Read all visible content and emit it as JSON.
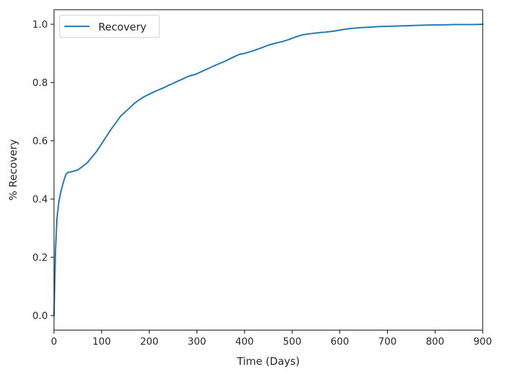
{
  "chart_data": {
    "type": "line",
    "title": "",
    "xlabel": "Time (Days)",
    "ylabel": "% Recovery",
    "xlim": [
      0,
      900
    ],
    "ylim": [
      -0.05,
      1.05
    ],
    "xticks": [
      0,
      100,
      200,
      300,
      400,
      500,
      600,
      700,
      800,
      900
    ],
    "yticks": [
      0.0,
      0.2,
      0.4,
      0.6,
      0.8,
      1.0
    ],
    "xtick_labels": [
      "0",
      "100",
      "200",
      "300",
      "400",
      "500",
      "600",
      "700",
      "800",
      "900"
    ],
    "ytick_labels": [
      "0.0",
      "0.2",
      "0.4",
      "0.6",
      "0.8",
      "1.0"
    ],
    "grid": false,
    "legend": {
      "position": "upper-left",
      "entries": [
        "Recovery"
      ]
    },
    "series": [
      {
        "name": "Recovery",
        "color": "#1f77b4",
        "x": [
          0,
          3,
          6,
          10,
          15,
          20,
          25,
          30,
          40,
          50,
          60,
          70,
          80,
          90,
          100,
          110,
          120,
          130,
          140,
          150,
          160,
          170,
          180,
          190,
          200,
          210,
          220,
          230,
          240,
          250,
          260,
          270,
          280,
          290,
          300,
          310,
          320,
          330,
          340,
          350,
          360,
          370,
          380,
          390,
          400,
          410,
          420,
          430,
          440,
          450,
          460,
          470,
          480,
          490,
          500,
          510,
          520,
          530,
          540,
          550,
          560,
          570,
          580,
          590,
          600,
          620,
          640,
          660,
          680,
          700,
          720,
          740,
          760,
          780,
          800,
          820,
          840,
          860,
          880,
          900
        ],
        "y": [
          0.0,
          0.22,
          0.33,
          0.39,
          0.43,
          0.46,
          0.485,
          0.492,
          0.495,
          0.5,
          0.512,
          0.525,
          0.545,
          0.565,
          0.59,
          0.615,
          0.64,
          0.662,
          0.685,
          0.7,
          0.715,
          0.73,
          0.742,
          0.752,
          0.76,
          0.768,
          0.775,
          0.782,
          0.79,
          0.797,
          0.805,
          0.812,
          0.82,
          0.825,
          0.83,
          0.838,
          0.845,
          0.853,
          0.86,
          0.867,
          0.874,
          0.882,
          0.89,
          0.897,
          0.9,
          0.905,
          0.91,
          0.916,
          0.922,
          0.928,
          0.933,
          0.937,
          0.941,
          0.946,
          0.952,
          0.958,
          0.963,
          0.966,
          0.968,
          0.97,
          0.972,
          0.973,
          0.975,
          0.977,
          0.98,
          0.985,
          0.988,
          0.99,
          0.992,
          0.993,
          0.994,
          0.995,
          0.996,
          0.997,
          0.998,
          0.998,
          0.999,
          0.999,
          0.999,
          1.0
        ]
      }
    ]
  }
}
